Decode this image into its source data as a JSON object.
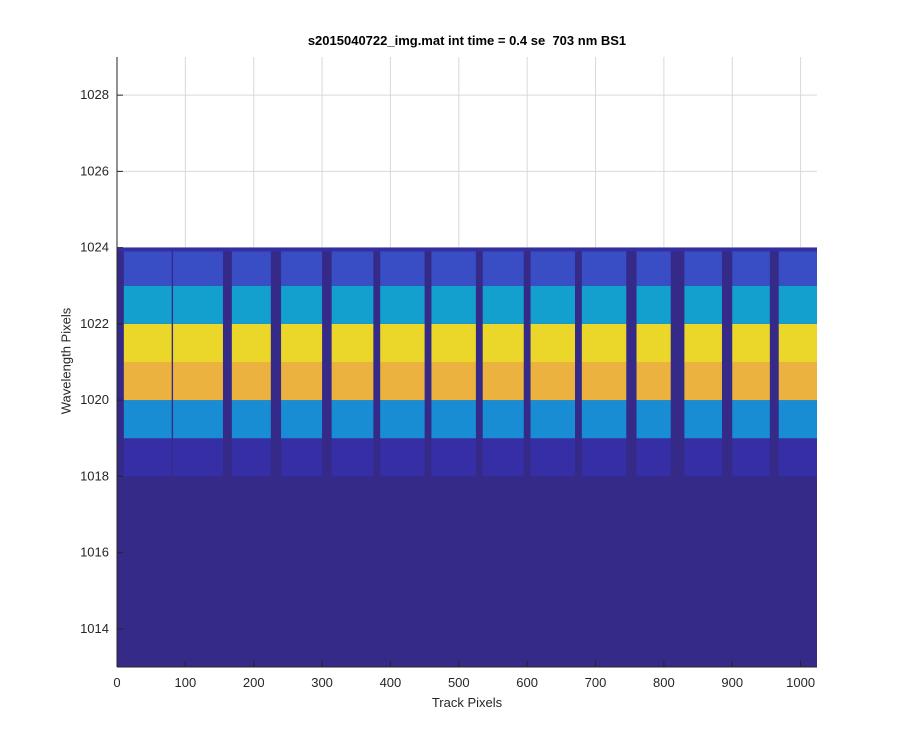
{
  "chart_data": {
    "type": "heatmap",
    "title": "s2015040722_img.mat int time = 0.4 se  703 nm BS1",
    "xlabel": "Track Pixels",
    "ylabel": "Wavelength Pixels",
    "xlim": [
      0,
      1024
    ],
    "ylim": [
      1013,
      1029
    ],
    "xticks": [
      0,
      100,
      200,
      300,
      400,
      500,
      600,
      700,
      800,
      900,
      1000
    ],
    "yticks": [
      1014,
      1016,
      1018,
      1020,
      1022,
      1024,
      1026,
      1028
    ],
    "grid": true,
    "colormap": "parula",
    "colors": {
      "background": "#352a87",
      "edge_row": "#3c4dcc",
      "row_1019": "#0f8fd6",
      "row_1020": "#f5ba3d",
      "row_1021": "#f3e226",
      "row_1022": "#14a9d4",
      "gap": "#332fa0"
    },
    "data_region": {
      "x": [
        0,
        1024
      ],
      "y": [
        1013,
        1024
      ]
    },
    "stripes": [
      {
        "x_start": 10,
        "x_end": 80
      },
      {
        "x_start": 82,
        "x_end": 155
      },
      {
        "x_start": 168,
        "x_end": 225
      },
      {
        "x_start": 240,
        "x_end": 300
      },
      {
        "x_start": 314,
        "x_end": 375
      },
      {
        "x_start": 385,
        "x_end": 450
      },
      {
        "x_start": 460,
        "x_end": 525
      },
      {
        "x_start": 535,
        "x_end": 595
      },
      {
        "x_start": 605,
        "x_end": 670
      },
      {
        "x_start": 680,
        "x_end": 745
      },
      {
        "x_start": 760,
        "x_end": 810
      },
      {
        "x_start": 830,
        "x_end": 885
      },
      {
        "x_start": 900,
        "x_end": 955
      },
      {
        "x_start": 968,
        "x_end": 1024
      }
    ],
    "rows": [
      {
        "y_start": 1018,
        "y_end": 1019,
        "color": "#362ea6"
      },
      {
        "y_start": 1019,
        "y_end": 1020,
        "color": "#1792d8"
      },
      {
        "y_start": 1020,
        "y_end": 1021,
        "color": "#f6b93b"
      },
      {
        "y_start": 1021,
        "y_end": 1022,
        "color": "#f4e024"
      },
      {
        "y_start": 1022,
        "y_end": 1023,
        "color": "#12a7d2"
      },
      {
        "y_start": 1023,
        "y_end": 1024,
        "color": "#3a4fc8"
      }
    ]
  }
}
